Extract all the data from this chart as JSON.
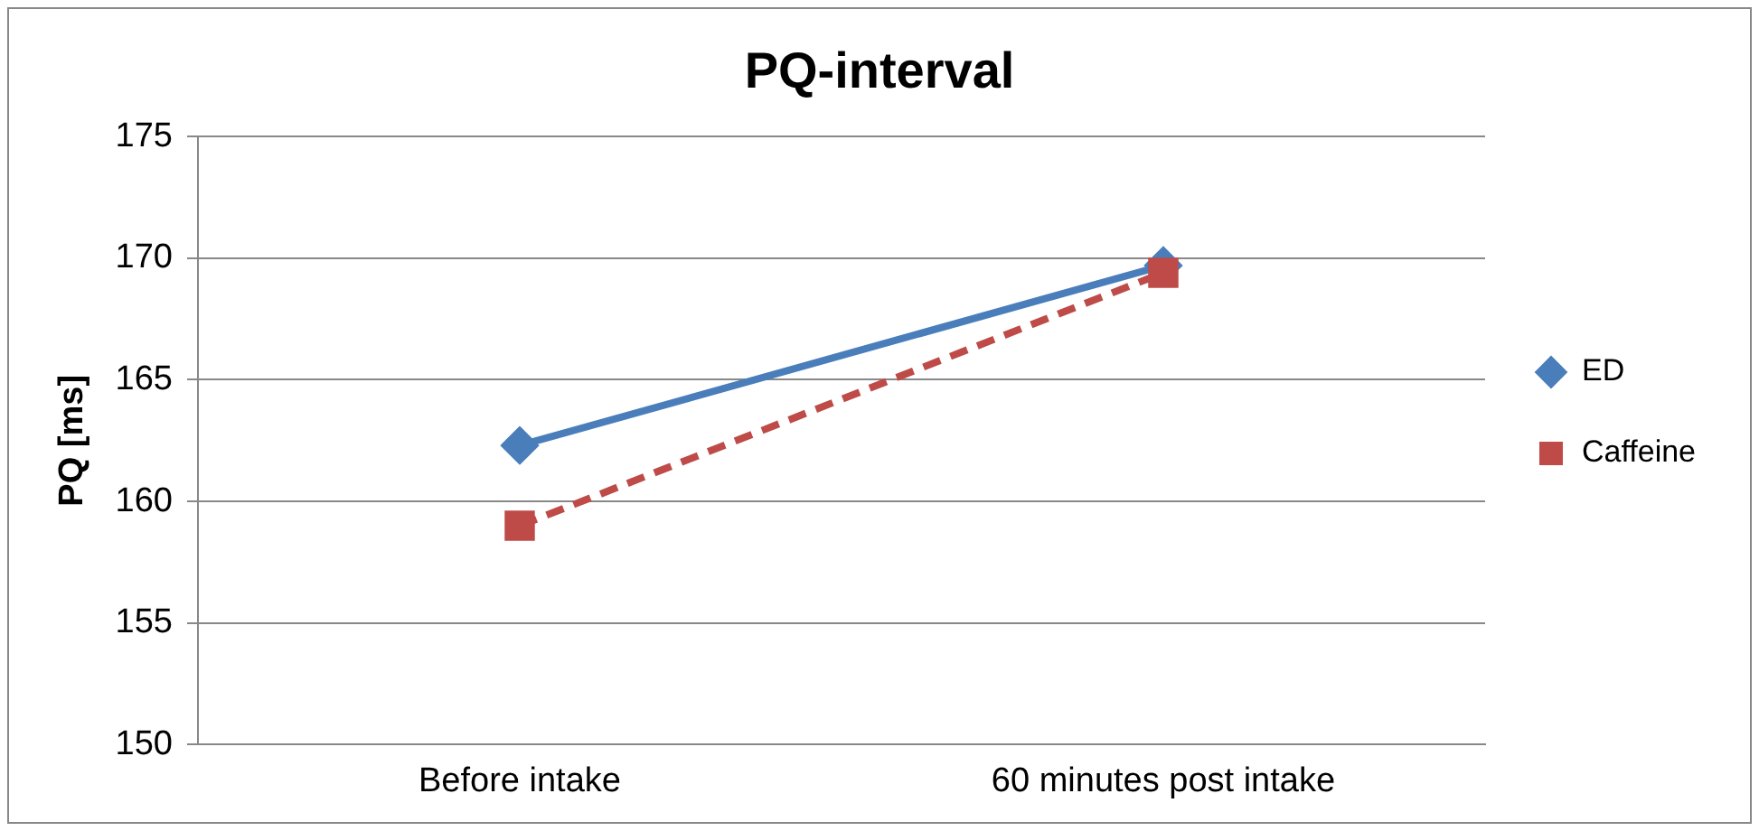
{
  "chart_data": {
    "type": "line",
    "title": "PQ-interval",
    "ylabel": "PQ [ms]",
    "categories": [
      "Before intake",
      "60 minutes post intake"
    ],
    "series": [
      {
        "name": "ED",
        "color": "#4a7ebb",
        "values": [
          162.3,
          169.7
        ],
        "marker": "diamond",
        "line_style": "solid"
      },
      {
        "name": "Caffeine",
        "color": "#be4b48",
        "values": [
          159.0,
          169.4
        ],
        "marker": "square",
        "line_style": "dashed"
      }
    ],
    "ylim": [
      150,
      175
    ],
    "yticks": [
      150,
      155,
      160,
      165,
      170,
      175
    ],
    "grid": "y",
    "legend": "right"
  }
}
